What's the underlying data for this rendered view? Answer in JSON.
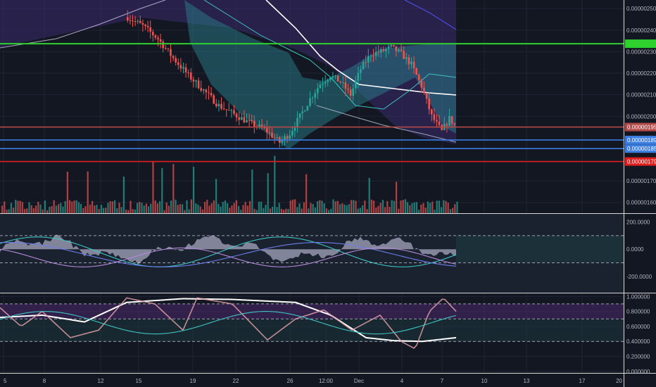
{
  "chart_data": {
    "type": "candlestick",
    "main": {
      "y_ticks": [
        "0.00000250",
        "0.00000240",
        "0.00000230",
        "0.00000220",
        "0.00000210",
        "0.00000200",
        "0.00000170",
        "0.00000160"
      ],
      "y_tick_values": [
        2.5,
        2.4,
        2.3,
        2.2,
        2.1,
        2.0,
        1.7,
        1.6
      ],
      "ylim": [
        1.55,
        2.54
      ],
      "price_lines": [
        {
          "value": 2.337,
          "label": "",
          "color": "#2fd12f"
        },
        {
          "value": 1.95,
          "label": "0.00000195",
          "color": "#b24a4a"
        },
        {
          "value": 1.89,
          "label": "0.00000189",
          "color": "#3b7de0"
        },
        {
          "value": 1.85,
          "label": "0.00000185",
          "color": "#3b7de0"
        },
        {
          "value": 1.79,
          "label": "0.00000179",
          "color": "#e01e1e"
        }
      ]
    },
    "oscillator1": {
      "y_ticks": [
        "200.0000",
        "0.0000",
        "-200.0000"
      ],
      "y_tick_values": [
        200,
        0,
        -200
      ],
      "ylim": [
        -320,
        260
      ],
      "levels": [
        100,
        -100
      ]
    },
    "oscillator2": {
      "y_ticks": [
        "1.000000",
        "0.800000",
        "0.600000",
        "0.400000",
        "0.200000",
        "0.000000"
      ],
      "y_tick_values": [
        1.0,
        0.8,
        0.6,
        0.4,
        0.2,
        0.0
      ],
      "ylim": [
        -0.02,
        1.04
      ],
      "levels": [
        0.9,
        0.7,
        0.4
      ]
    },
    "x_ticks": [
      "5",
      "8",
      "12",
      "15",
      "19",
      "22",
      "26",
      "12:00",
      "Dec",
      "4",
      "7",
      "10",
      "13",
      "17",
      "20"
    ],
    "colors": {
      "up": "#26a69a",
      "down": "#ef5350",
      "background": "#131722",
      "grid": "#1f2433"
    }
  }
}
